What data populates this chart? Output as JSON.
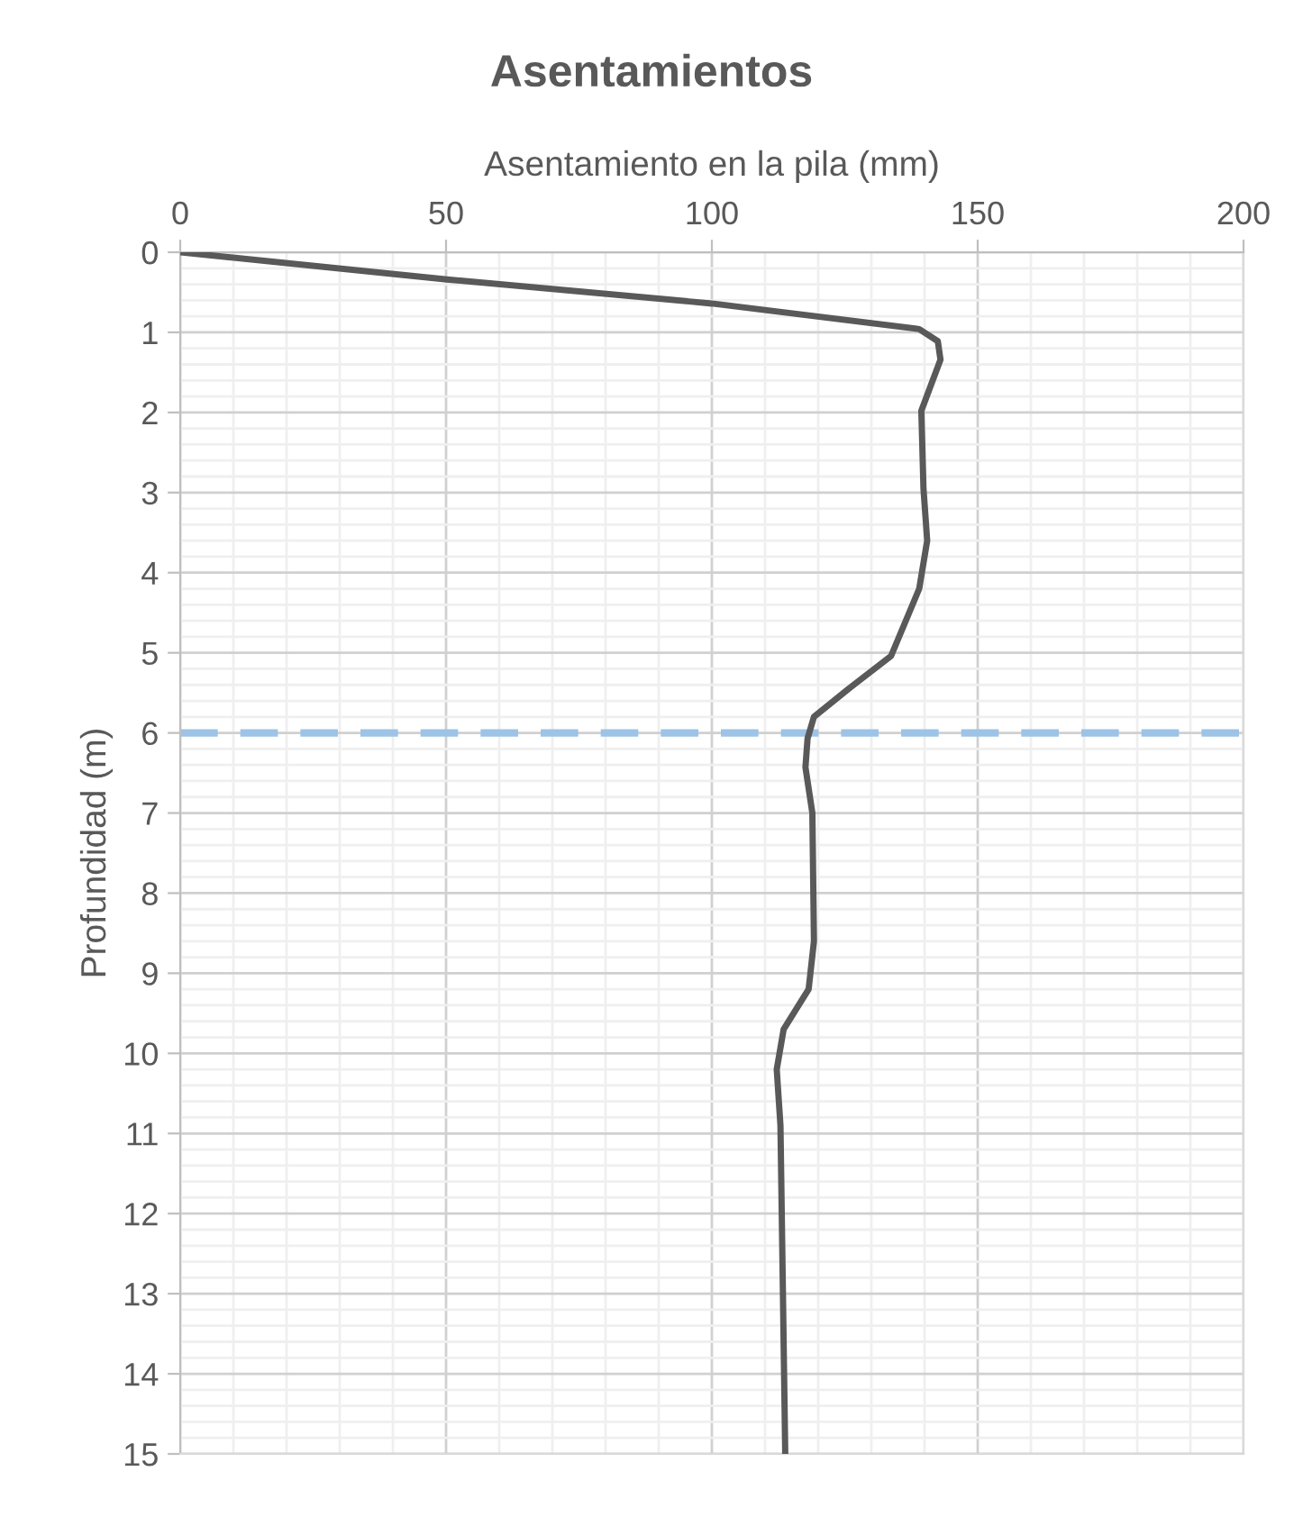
{
  "chart_data": {
    "type": "line",
    "title": "Asentamientos",
    "xlabel": "Asentamiento en la pila (mm)",
    "ylabel": "Profundidad (m)",
    "series": [
      {
        "color": "#595959",
        "x": [
          0,
          50.2,
          100,
          139,
          142.5,
          143,
          139.4,
          139.8,
          140.5,
          139,
          133.7,
          125.7,
          119.2,
          118,
          117.6,
          118.9,
          119.2,
          118.2,
          113.5,
          112.2,
          112.9,
          113.3,
          113.8
        ],
        "values": [
          0,
          0.34,
          0.64,
          0.96,
          1.11,
          1.34,
          1.98,
          2.95,
          3.6,
          4.2,
          5.04,
          5.45,
          5.8,
          6.07,
          6.43,
          7,
          8.6,
          9.2,
          9.7,
          10.2,
          10.9,
          12.7,
          15
        ]
      }
    ],
    "xlim": [
      0,
      200
    ],
    "xticks": [
      0,
      50,
      100,
      150,
      200
    ],
    "ylim": [
      15,
      0
    ],
    "yticks": [
      0,
      1,
      2,
      3,
      4,
      5,
      6,
      7,
      8,
      9,
      10,
      11,
      12,
      13,
      14,
      15
    ],
    "ref_lines": [
      {
        "axis": "y",
        "value": 6,
        "color": "#9dc3e6",
        "line_style": "dashed"
      }
    ],
    "grid": true,
    "legend": false,
    "marker": "none",
    "line_style": "solid"
  }
}
